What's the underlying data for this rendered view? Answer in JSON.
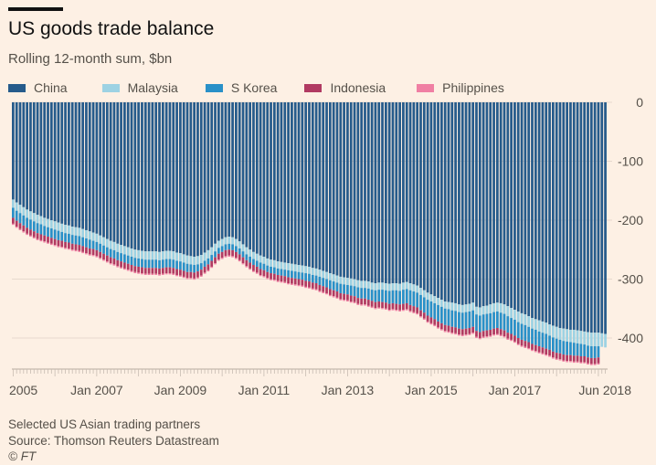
{
  "header": {
    "title": "US goods trade balance",
    "subtitle": "Rolling 12-month sum, $bn"
  },
  "footer": {
    "note": "Selected US Asian trading partners",
    "source": "Source: Thomson Reuters Datastream",
    "copyright": "© FT"
  },
  "chart_data": {
    "type": "bar",
    "stacked": true,
    "title": "US goods trade balance",
    "subtitle": "Rolling 12-month sum, $bn",
    "xlabel": "",
    "ylabel": "",
    "frequency": "monthly",
    "x_start": "Jan 2005",
    "x_end": "Jun 2018",
    "x_tick_labels": [
      "2005",
      "Jan 2007",
      "Jan 2009",
      "Jan 2011",
      "Jan 2013",
      "Jan 2015",
      "Jan 2017",
      "Jun 2018"
    ],
    "y_tick_labels": [
      "0",
      "-100",
      "-200",
      "-300",
      "-400"
    ],
    "y_ticks": [
      0,
      -100,
      -200,
      -300,
      -400
    ],
    "ylim": [
      -455,
      0
    ],
    "y_axis_side": "right",
    "grid": true,
    "legend_position": "top",
    "colors": {
      "China": "#265b8b",
      "Malaysia": "#9dd2e3",
      "S Korea": "#2990c8",
      "Indonesia": "#b13a62",
      "Philippines": "#f07fa3",
      "background": "#fdf0e4"
    },
    "series": [
      {
        "name": "China",
        "values": [
          -165,
          -170,
          -174,
          -178,
          -182,
          -185,
          -188,
          -191,
          -193,
          -196,
          -198,
          -200,
          -202,
          -204,
          -206,
          -208,
          -209,
          -211,
          -212,
          -213,
          -215,
          -217,
          -219,
          -221,
          -223,
          -226,
          -229,
          -232,
          -235,
          -237,
          -240,
          -242,
          -244,
          -246,
          -248,
          -250,
          -251,
          -252,
          -253,
          -253,
          -253,
          -253,
          -254,
          -253,
          -252,
          -252,
          -253,
          -255,
          -256,
          -258,
          -260,
          -261,
          -262,
          -261,
          -259,
          -255,
          -251,
          -246,
          -240,
          -235,
          -232,
          -229,
          -228,
          -229,
          -232,
          -236,
          -241,
          -246,
          -250,
          -254,
          -257,
          -260,
          -262,
          -265,
          -267,
          -268,
          -270,
          -271,
          -272,
          -273,
          -274,
          -275,
          -276,
          -277,
          -278,
          -279,
          -281,
          -282,
          -284,
          -286,
          -288,
          -290,
          -292,
          -294,
          -296,
          -297,
          -298,
          -299,
          -300,
          -302,
          -303,
          -303,
          -304,
          -306,
          -307,
          -306,
          -306,
          -307,
          -308,
          -307,
          -307,
          -308,
          -306,
          -305,
          -307,
          -309,
          -311,
          -315,
          -319,
          -323,
          -326,
          -329,
          -332,
          -335,
          -338,
          -339,
          -340,
          -341,
          -343,
          -344,
          -343,
          -342,
          -340,
          -347,
          -348,
          -346,
          -345,
          -343,
          -341,
          -340,
          -341,
          -343,
          -346,
          -349,
          -352,
          -355,
          -358,
          -360,
          -363,
          -366,
          -368,
          -370,
          -372,
          -374,
          -377,
          -379,
          -381,
          -383,
          -384,
          -385,
          -386,
          -386,
          -387,
          -388,
          -389,
          -390,
          -391,
          -391,
          -391,
          -392,
          -393
        ]
      },
      {
        "name": "Malaysia",
        "values": [
          -14,
          -14,
          -14,
          -14,
          -14,
          -14,
          -14,
          -14,
          -14,
          -14,
          -14,
          -14,
          -14,
          -14,
          -14,
          -14,
          -14,
          -14,
          -14,
          -14,
          -14,
          -14,
          -14,
          -14,
          -14,
          -14,
          -14,
          -14,
          -14,
          -14,
          -14,
          -14,
          -14,
          -14,
          -14,
          -14,
          -14,
          -14,
          -14,
          -14,
          -14,
          -14,
          -14,
          -14,
          -14,
          -14,
          -14,
          -14,
          -14,
          -14,
          -14,
          -14,
          -14,
          -14,
          -14,
          -14,
          -14,
          -13,
          -13,
          -12,
          -12,
          -12,
          -12,
          -12,
          -12,
          -12,
          -12,
          -12,
          -12,
          -12,
          -12,
          -12,
          -12,
          -12,
          -12,
          -12,
          -12,
          -12,
          -12,
          -12,
          -12,
          -12,
          -12,
          -12,
          -12,
          -12,
          -12,
          -12,
          -12,
          -12,
          -12,
          -12,
          -12,
          -12,
          -12,
          -12,
          -12,
          -12,
          -12,
          -12,
          -12,
          -12,
          -12,
          -12,
          -12,
          -12,
          -12,
          -12,
          -12,
          -12,
          -12,
          -12,
          -12,
          -12,
          -12,
          -12,
          -12,
          -12,
          -12,
          -12,
          -12,
          -12,
          -12,
          -12,
          -12,
          -12,
          -13,
          -13,
          -13,
          -13,
          -13,
          -13,
          -13,
          -13,
          -14,
          -14,
          -14,
          -15,
          -15,
          -15,
          -16,
          -16,
          -17,
          -17,
          -17,
          -18,
          -18,
          -18,
          -18,
          -18,
          -18,
          -19,
          -19,
          -19,
          -19,
          -20,
          -20,
          -20,
          -21,
          -21,
          -21,
          -22,
          -22,
          -22,
          -22,
          -23,
          -23,
          -23,
          -23,
          -23,
          -23,
          -23,
          -23
        ]
      },
      {
        "name": "S Korea",
        "values": [
          -17,
          -17,
          -17,
          -17,
          -17,
          -17,
          -17,
          -17,
          -17,
          -16,
          -16,
          -16,
          -16,
          -16,
          -15,
          -15,
          -15,
          -15,
          -15,
          -15,
          -15,
          -15,
          -15,
          -14,
          -14,
          -14,
          -14,
          -14,
          -14,
          -14,
          -14,
          -14,
          -14,
          -14,
          -14,
          -14,
          -14,
          -14,
          -14,
          -14,
          -14,
          -14,
          -14,
          -14,
          -14,
          -14,
          -14,
          -14,
          -14,
          -14,
          -14,
          -13,
          -13,
          -12,
          -11,
          -10,
          -10,
          -10,
          -10,
          -10,
          -10,
          -10,
          -10,
          -10,
          -10,
          -10,
          -10,
          -10,
          -10,
          -10,
          -10,
          -11,
          -11,
          -11,
          -11,
          -11,
          -11,
          -11,
          -11,
          -12,
          -12,
          -12,
          -12,
          -12,
          -13,
          -13,
          -13,
          -13,
          -14,
          -14,
          -14,
          -15,
          -15,
          -15,
          -16,
          -16,
          -16,
          -17,
          -17,
          -18,
          -18,
          -18,
          -19,
          -19,
          -20,
          -20,
          -21,
          -21,
          -22,
          -22,
          -23,
          -23,
          -24,
          -24,
          -25,
          -25,
          -25,
          -26,
          -26,
          -27,
          -27,
          -27,
          -28,
          -28,
          -28,
          -28,
          -28,
          -28,
          -28,
          -28,
          -28,
          -28,
          -28,
          -28,
          -28,
          -28,
          -28,
          -28,
          -28,
          -28,
          -28,
          -28,
          -28,
          -27,
          -27,
          -27,
          -27,
          -27,
          -26,
          -26,
          -26,
          -25,
          -25,
          -25,
          -24,
          -24,
          -24,
          -23,
          -23,
          -23,
          -22,
          -22,
          -21,
          -21,
          -20,
          -20,
          -20,
          -20,
          -19
        ]
      },
      {
        "name": "Indonesia",
        "values": [
          -10,
          -10,
          -10,
          -10,
          -10,
          -10,
          -10,
          -10,
          -10,
          -10,
          -10,
          -10,
          -10,
          -10,
          -10,
          -10,
          -10,
          -10,
          -10,
          -10,
          -10,
          -10,
          -10,
          -10,
          -10,
          -10,
          -10,
          -10,
          -10,
          -10,
          -10,
          -10,
          -10,
          -10,
          -10,
          -10,
          -10,
          -10,
          -10,
          -10,
          -10,
          -10,
          -10,
          -10,
          -10,
          -10,
          -10,
          -10,
          -10,
          -10,
          -10,
          -10,
          -10,
          -10,
          -10,
          -10,
          -10,
          -10,
          -10,
          -10,
          -10,
          -10,
          -10,
          -10,
          -10,
          -10,
          -10,
          -10,
          -10,
          -10,
          -10,
          -10,
          -10,
          -10,
          -10,
          -10,
          -10,
          -10,
          -10,
          -10,
          -10,
          -10,
          -10,
          -10,
          -10,
          -10,
          -10,
          -10,
          -10,
          -10,
          -10,
          -10,
          -10,
          -10,
          -10,
          -10,
          -10,
          -10,
          -10,
          -10,
          -10,
          -10,
          -10,
          -10,
          -10,
          -10,
          -10,
          -10,
          -10,
          -10,
          -10,
          -10,
          -10,
          -10,
          -10,
          -10,
          -10,
          -10,
          -10,
          -10,
          -10,
          -10,
          -10,
          -10,
          -10,
          -10,
          -10,
          -10,
          -10,
          -10,
          -10,
          -10,
          -10,
          -10,
          -10,
          -10,
          -10,
          -10,
          -10,
          -10,
          -10,
          -10,
          -10,
          -10,
          -10,
          -10,
          -10,
          -10,
          -10,
          -10,
          -10,
          -10,
          -10,
          -10,
          -10,
          -10,
          -10,
          -10,
          -10,
          -10,
          -10,
          -10,
          -10,
          -10,
          -10,
          -10,
          -10,
          -10,
          -10,
          -10,
          -10,
          -10
        ]
      },
      {
        "name": "Philippines",
        "values": [
          -2,
          -2,
          -2,
          -2,
          -2,
          -2,
          -2,
          -2,
          -2,
          -2,
          -2,
          -2,
          -2,
          -2,
          -2,
          -2,
          -2,
          -2,
          -2,
          -2,
          -2,
          -2,
          -2,
          -2,
          -2,
          -2,
          -2,
          -2,
          -2,
          -2,
          -2,
          -2,
          -2,
          -2,
          -2,
          -2,
          -2,
          -2,
          -2,
          -2,
          -2,
          -2,
          -2,
          -2,
          -2,
          -2,
          -2,
          -2,
          -2,
          -2,
          -2,
          -2,
          -2,
          -2,
          -2,
          -2,
          -2,
          -2,
          -2,
          -2,
          -2,
          -2,
          -2,
          -2,
          -2,
          -2,
          -2,
          -2,
          -2,
          -2,
          -2,
          -2,
          -2,
          -2,
          -2,
          -2,
          -2,
          -2,
          -2,
          -2,
          -2,
          -2,
          -2,
          -2,
          -2,
          -2,
          -2,
          -2,
          -2,
          -2,
          -2,
          -2,
          -2,
          -2,
          -2,
          -2,
          -2,
          -2,
          -2,
          -2,
          -2,
          -2,
          -2,
          -2,
          -2,
          -2,
          -2,
          -2,
          -2,
          -2,
          -2,
          -2,
          -2,
          -2,
          -2,
          -2,
          -2,
          -2,
          -2,
          -2,
          -2,
          -2,
          -2,
          -2,
          -2,
          -2,
          -2,
          -2,
          -2,
          -2,
          -2,
          -2,
          -2,
          -2,
          -2,
          -2,
          -2,
          -2,
          -2,
          -2,
          -2,
          -2,
          -2,
          -2,
          -2,
          -2,
          -2,
          -2,
          -2,
          -2,
          -2,
          -2,
          -2,
          -2,
          -2,
          -2,
          -2,
          -2,
          -2,
          -2,
          -2,
          -2,
          -2,
          -2,
          -2,
          -2,
          -2,
          -2,
          -2,
          -2,
          -2,
          -2
        ]
      }
    ],
    "legend_order": [
      "China",
      "Malaysia",
      "S Korea",
      "Indonesia",
      "Philippines"
    ],
    "stack_order_top_to_bottom": [
      "China",
      "Malaysia",
      "S Korea",
      "Indonesia",
      "Philippines"
    ]
  }
}
